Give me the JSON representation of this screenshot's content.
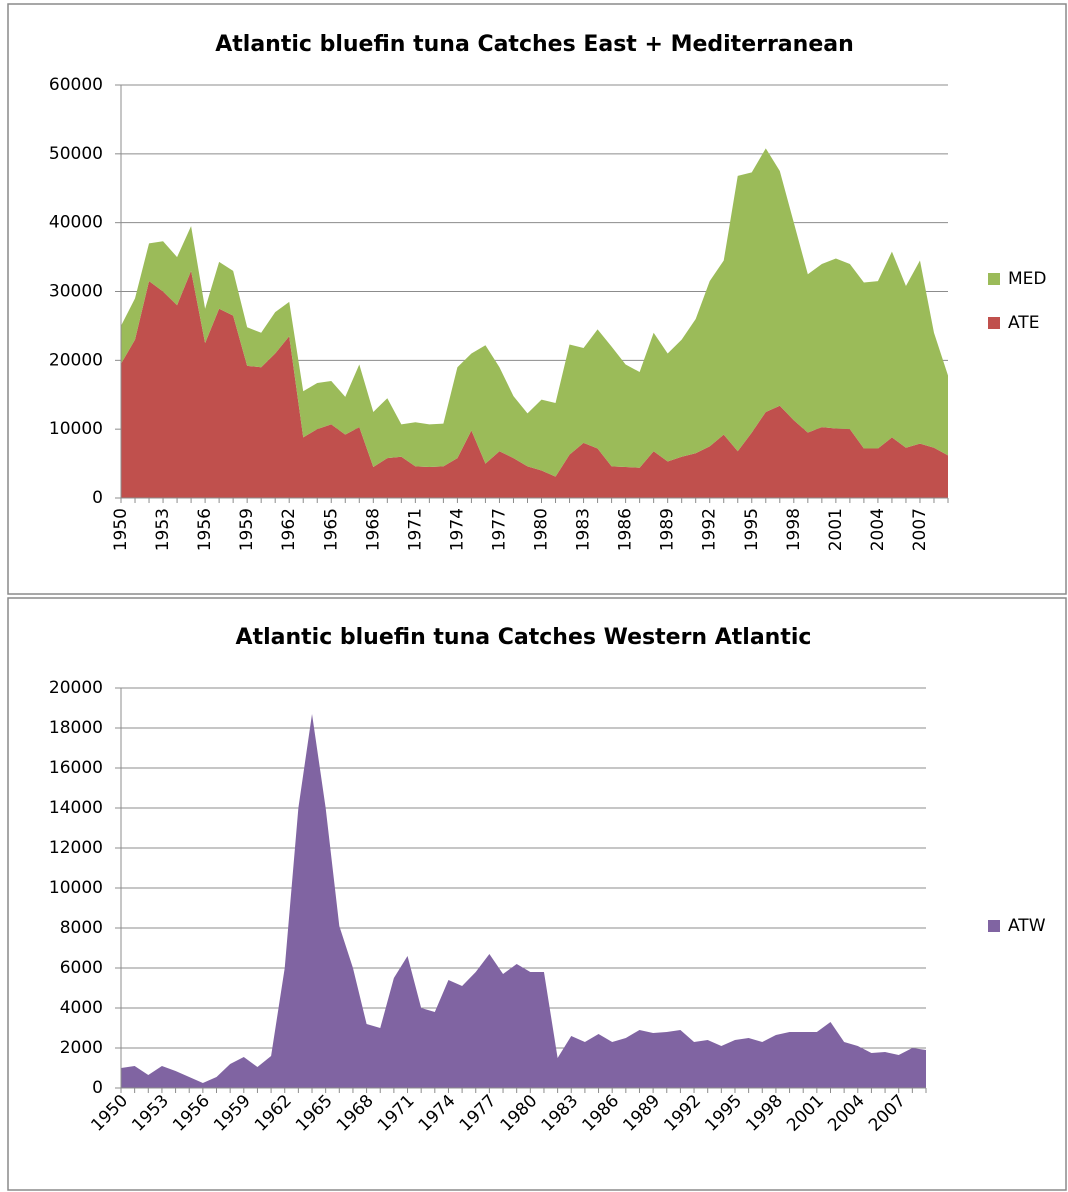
{
  "chart_data": [
    {
      "type": "area",
      "stacked": true,
      "title": "Atlantic bluefin tuna Catches East + Mediterranean",
      "categories": [
        "1950",
        null,
        null,
        "1953",
        null,
        null,
        "1956",
        null,
        null,
        "1959",
        null,
        null,
        "1962",
        null,
        null,
        "1965",
        null,
        null,
        "1968",
        null,
        null,
        "1971",
        null,
        null,
        "1974",
        null,
        null,
        "1977",
        null,
        null,
        "1980",
        null,
        null,
        "1983",
        null,
        null,
        "1986",
        null,
        null,
        "1989",
        null,
        null,
        "1992",
        null,
        null,
        "1995",
        null,
        null,
        "1998",
        null,
        null,
        "2001",
        null,
        null,
        "2004",
        null,
        null,
        "2007",
        null,
        null
      ],
      "series": [
        {
          "name": "ATE",
          "color": "#c0504d",
          "values": [
            19500,
            23000,
            31500,
            30000,
            28000,
            33000,
            22500,
            27500,
            26500,
            19200,
            19000,
            21000,
            23500,
            8800,
            10000,
            10700,
            9200,
            10300,
            4500,
            5800,
            6000,
            4600,
            4500,
            4600,
            5800,
            9800,
            5000,
            6800,
            5800,
            4600,
            4000,
            3100,
            6300,
            8000,
            7200,
            4600,
            4500,
            4400,
            6800,
            5300,
            6000,
            6500,
            7500,
            9200,
            6800,
            9500,
            12500,
            13400,
            11300,
            9500,
            10300,
            10100,
            10000,
            7200,
            7200,
            8800,
            7300,
            7900,
            7300,
            6200
          ]
        },
        {
          "name": "MED",
          "color": "#9bbb59",
          "values": [
            5500,
            6000,
            5500,
            7300,
            7000,
            6500,
            5000,
            6800,
            6500,
            5600,
            5000,
            6000,
            5000,
            6700,
            6700,
            6300,
            5500,
            9100,
            8000,
            8700,
            4700,
            6400,
            6200,
            6200,
            13200,
            11200,
            17200,
            12200,
            9000,
            7700,
            10300,
            10700,
            16000,
            13800,
            17300,
            17400,
            14900,
            13900,
            17200,
            15700,
            17000,
            19500,
            24000,
            25300,
            40000,
            37800,
            38300,
            34100,
            28700,
            23000,
            23700,
            24700,
            24000,
            24100,
            24300,
            27000,
            23500,
            26600,
            16700,
            11600
          ]
        }
      ],
      "ylim": [
        0,
        60000
      ],
      "yticks": [
        0,
        10000,
        20000,
        30000,
        40000,
        50000,
        60000
      ],
      "grid": true,
      "legend": "right"
    },
    {
      "type": "area",
      "stacked": false,
      "title": "Atlantic bluefin tuna Catches Western Atlantic",
      "categories": [
        "1950",
        null,
        null,
        "1953",
        null,
        null,
        "1956",
        null,
        null,
        "1959",
        null,
        null,
        "1962",
        null,
        null,
        "1965",
        null,
        null,
        "1968",
        null,
        null,
        "1971",
        null,
        null,
        "1974",
        null,
        null,
        "1977",
        null,
        null,
        "1980",
        null,
        null,
        "1983",
        null,
        null,
        "1986",
        null,
        null,
        "1989",
        null,
        null,
        "1992",
        null,
        null,
        "1995",
        null,
        null,
        "1998",
        null,
        null,
        "2001",
        null,
        null,
        "2004",
        null,
        null,
        "2007",
        null,
        null
      ],
      "series": [
        {
          "name": "ATW",
          "color": "#8064a2",
          "values": [
            1000,
            1100,
            650,
            1100,
            850,
            550,
            250,
            550,
            1200,
            1550,
            1050,
            1600,
            6000,
            14000,
            18700,
            14000,
            8100,
            6000,
            3200,
            3000,
            5500,
            6600,
            4000,
            3800,
            5400,
            5100,
            5800,
            6700,
            5700,
            6200,
            5800,
            5800,
            1500,
            2600,
            2300,
            2700,
            2300,
            2500,
            2900,
            2750,
            2800,
            2900,
            2300,
            2400,
            2100,
            2400,
            2500,
            2300,
            2650,
            2800,
            2800,
            2800,
            3300,
            2300,
            2100,
            1750,
            1800,
            1650,
            2000,
            1900
          ]
        }
      ],
      "ylim": [
        0,
        20000
      ],
      "yticks": [
        0,
        2000,
        4000,
        6000,
        8000,
        10000,
        12000,
        14000,
        16000,
        18000,
        20000
      ],
      "grid": true,
      "legend": "right"
    }
  ]
}
